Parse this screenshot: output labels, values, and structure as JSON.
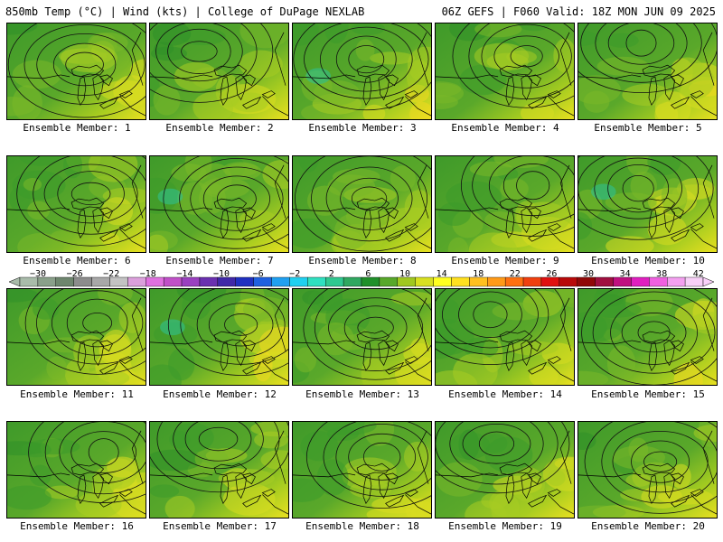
{
  "header": {
    "left": "850mb Temp (°C) | Wind (kts) | College of DuPage NEXLAB",
    "right": "06Z GEFS | F060 Valid: 18Z MON JUN 09 2025"
  },
  "panels": [
    {
      "label": "Ensemble Member: 1",
      "seed": 1
    },
    {
      "label": "Ensemble Member: 2",
      "seed": 2
    },
    {
      "label": "Ensemble Member: 3",
      "seed": 3
    },
    {
      "label": "Ensemble Member: 4",
      "seed": 4
    },
    {
      "label": "Ensemble Member: 5",
      "seed": 5
    },
    {
      "label": "Ensemble Member: 6",
      "seed": 6
    },
    {
      "label": "Ensemble Member: 7",
      "seed": 7
    },
    {
      "label": "Ensemble Member: 8",
      "seed": 8
    },
    {
      "label": "Ensemble Member: 9",
      "seed": 9
    },
    {
      "label": "Ensemble Member: 10",
      "seed": 10
    },
    {
      "label": "Ensemble Member: 11",
      "seed": 11
    },
    {
      "label": "Ensemble Member: 12",
      "seed": 12
    },
    {
      "label": "Ensemble Member: 13",
      "seed": 13
    },
    {
      "label": "Ensemble Member: 14",
      "seed": 14
    },
    {
      "label": "Ensemble Member: 15",
      "seed": 15
    },
    {
      "label": "Ensemble Member: 16",
      "seed": 16
    },
    {
      "label": "Ensemble Member: 17",
      "seed": 17
    },
    {
      "label": "Ensemble Member: 18",
      "seed": 18
    },
    {
      "label": "Ensemble Member: 19",
      "seed": 19
    },
    {
      "label": "Ensemble Member: 20",
      "seed": 20
    }
  ],
  "colorbar": {
    "ticks": [
      "−30",
      "−26",
      "−22",
      "−18",
      "−14",
      "−10",
      "−6",
      "−2",
      "2",
      "6",
      "10",
      "14",
      "18",
      "22",
      "26",
      "30",
      "34",
      "38",
      "42"
    ],
    "colors": [
      "#a9bcaa",
      "#8aa08a",
      "#6e866e",
      "#8c8c8c",
      "#a8a8a8",
      "#c3c3c3",
      "#dca0dc",
      "#e070e0",
      "#c050c8",
      "#9a40c0",
      "#6a30b0",
      "#4028a8",
      "#2030c0",
      "#2060e0",
      "#20a0f0",
      "#20d0f0",
      "#30e0c0",
      "#30c890",
      "#30a860",
      "#20902a",
      "#58a82a",
      "#a0c820",
      "#d8e020",
      "#ffff20",
      "#ffe020",
      "#ffc020",
      "#ff9a18",
      "#ff7010",
      "#f04010",
      "#e01010",
      "#b80a0a",
      "#900808",
      "#a01040",
      "#c01080",
      "#e020c0",
      "#f060e0",
      "#f4a0f0",
      "#f8d0f8"
    ]
  }
}
